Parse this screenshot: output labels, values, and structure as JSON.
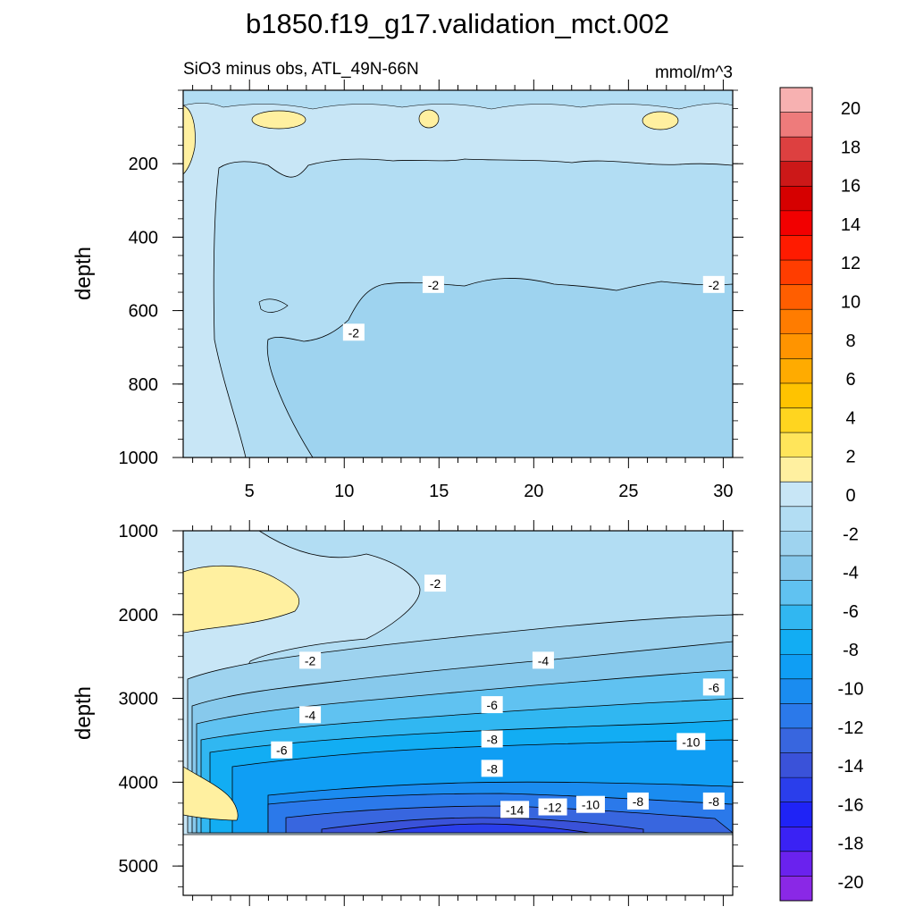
{
  "chart_data": {
    "type": "contour",
    "title": "b1850.f19_g17.validation_mct.002",
    "subtitle_left": "SiO3 minus obs, ATL_49N-66N",
    "subtitle_right": "mmol/m^3",
    "ylabel_top": "depth",
    "ylabel_bottom": "depth",
    "xlim": [
      1.5,
      30.5
    ],
    "x_ticks": [
      5,
      10,
      15,
      20,
      25,
      30
    ],
    "x_tick_labels": [
      "5",
      "10",
      "15",
      "20",
      "25",
      "30"
    ],
    "top_panel": {
      "ylim": [
        0,
        1000
      ],
      "y_ticks": [
        200,
        400,
        600,
        800,
        1000
      ],
      "y_tick_labels": [
        "200",
        "400",
        "600",
        "800",
        "1000"
      ],
      "contour_labels": [
        {
          "text": "-2",
          "x": 14.7,
          "depth": 530
        },
        {
          "text": "-2",
          "x": 29.5,
          "depth": 530
        },
        {
          "text": "-2",
          "x": 10.5,
          "depth": 660
        }
      ]
    },
    "bottom_panel": {
      "ylim": [
        1000,
        5350
      ],
      "y_ticks": [
        1000,
        2000,
        3000,
        4000,
        5000
      ],
      "y_tick_labels": [
        "1000",
        "2000",
        "3000",
        "4000",
        "5000"
      ],
      "bottom_of_data_depth": 4630,
      "contour_labels": [
        {
          "text": "-2",
          "x": 14.8,
          "depth": 1630
        },
        {
          "text": "-2",
          "x": 8.2,
          "depth": 2550
        },
        {
          "text": "-4",
          "x": 20.5,
          "depth": 2550
        },
        {
          "text": "-6",
          "x": 29.5,
          "depth": 2870
        },
        {
          "text": "-6",
          "x": 17.8,
          "depth": 3080
        },
        {
          "text": "-4",
          "x": 8.2,
          "depth": 3200
        },
        {
          "text": "-8",
          "x": 17.8,
          "depth": 3490
        },
        {
          "text": "-10",
          "x": 28.3,
          "depth": 3520
        },
        {
          "text": "-6",
          "x": 6.7,
          "depth": 3620
        },
        {
          "text": "-8",
          "x": 17.8,
          "depth": 3840
        },
        {
          "text": "-14",
          "x": 19,
          "depth": 4330
        },
        {
          "text": "-12",
          "x": 21,
          "depth": 4300
        },
        {
          "text": "-10",
          "x": 23,
          "depth": 4270
        },
        {
          "text": "-8",
          "x": 25.5,
          "depth": 4230
        },
        {
          "text": "-8",
          "x": 29.5,
          "depth": 4230
        }
      ]
    },
    "colorbar": {
      "levels": [
        20,
        18,
        16,
        14,
        12,
        10,
        8,
        6,
        4,
        2,
        0,
        -2,
        -4,
        -6,
        -8,
        -10,
        -12,
        -14,
        -16,
        -18,
        -20
      ],
      "labels": [
        "20",
        "18",
        "16",
        "14",
        "12",
        "10",
        "8",
        "6",
        "4",
        "2",
        "0",
        "-2",
        "-4",
        "-6",
        "-8",
        "-10",
        "-12",
        "-14",
        "-16",
        "-18",
        "-20"
      ],
      "colors": [
        "#f7b1b1",
        "#ee7b7b",
        "#dd4040",
        "#cc1818",
        "#d60000",
        "#f20000",
        "#ff1b00",
        "#ff3d00",
        "#ff5e00",
        "#ff7c00",
        "#ff9400",
        "#ffab00",
        "#ffc300",
        "#ffd51f",
        "#ffe55a",
        "#fff0a0",
        "#c8e6f6",
        "#b2ddf3",
        "#9ed3ef",
        "#87c9ec",
        "#60c2f1",
        "#31b7f1",
        "#12adf3",
        "#0f9ef4",
        "#1a8cf0",
        "#2b79ea",
        "#3866df",
        "#3a52d9",
        "#2a3eeb",
        "#1f23f6",
        "#3a22f4",
        "#6a22ee",
        "#8a28e6"
      ]
    }
  }
}
